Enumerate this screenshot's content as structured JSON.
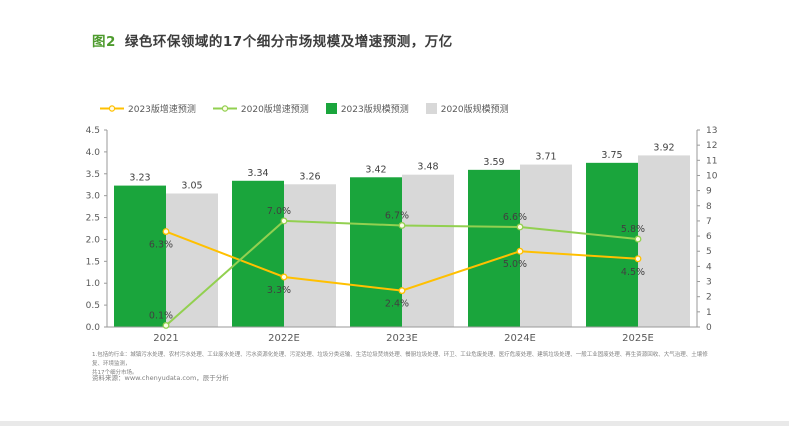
{
  "title": {
    "prefix": "图2",
    "text": "绿色环保领域的17个细分市场规模及增速预测，万亿"
  },
  "footnotes": [
    "1.包括的行业：城镇污水处理、农村污水处理、工业废水处理、污水资源化处理、污泥处理、垃圾分类运输、生活垃圾焚烧处理、餐厨垃圾处理、环卫、工业危废处理、医疗危废处理、建筑垃圾处理、一般工业固废处理、再生资源回收、大气治理、土壤修复、环境监测，",
    "共17个细分市场。"
  ],
  "source": "资料来源：www.chenyudata.com，辰于分析",
  "colors": {
    "bar_2023": "#1aa53c",
    "bar_2020": "#d8d8d8",
    "line_2023": "#ffc000",
    "line_2020": "#92d050",
    "title_accent": "#4e9b2e",
    "axis_text": "#595959",
    "value_text": "#404040",
    "axis_line": "#9a9a9a"
  },
  "chart_data": {
    "type": "bar",
    "title": "绿色环保领域的17个细分市场规模及增速预测，万亿",
    "categories": [
      "2021",
      "2022E",
      "2023E",
      "2024E",
      "2025E"
    ],
    "series": [
      {
        "name": "2023版规模预测",
        "kind": "bar",
        "axis": "left",
        "color": "#1aa53c",
        "values": [
          3.23,
          3.34,
          3.42,
          3.59,
          3.75
        ]
      },
      {
        "name": "2020版规模预测",
        "kind": "bar",
        "axis": "left",
        "color": "#d8d8d8",
        "values": [
          3.05,
          3.26,
          3.48,
          3.71,
          3.92
        ]
      },
      {
        "name": "2023版增速预测",
        "kind": "line",
        "axis": "right",
        "color": "#ffc000",
        "values": [
          6.3,
          3.3,
          2.4,
          5.0,
          4.5
        ],
        "labels": [
          "6.3%",
          "3.3%",
          "2.4%",
          "5.0%",
          "4.5%"
        ],
        "label_position": "below"
      },
      {
        "name": "2020版增速预测",
        "kind": "line",
        "axis": "right",
        "color": "#92d050",
        "values": [
          0.1,
          7.0,
          6.7,
          6.6,
          5.8
        ],
        "labels": [
          "0.1%",
          "7.0%",
          "6.7%",
          "6.6%",
          "5.8%"
        ],
        "label_position": "above"
      }
    ],
    "legend": [
      {
        "label": "2023版增速预测",
        "type": "line",
        "color": "#ffc000"
      },
      {
        "label": "2020版增速预测",
        "type": "line",
        "color": "#92d050"
      },
      {
        "label": "2023版规模预测",
        "type": "square",
        "color": "#1aa53c"
      },
      {
        "label": "2020版规模预测",
        "type": "square",
        "color": "#d8d8d8"
      }
    ],
    "left_axis": {
      "min": 0,
      "max": 4.5,
      "step": 0.5,
      "ticks": [
        "0.0",
        "0.5",
        "1.0",
        "1.5",
        "2.0",
        "2.5",
        "3.0",
        "3.5",
        "4.0",
        "4.5"
      ]
    },
    "right_axis": {
      "min": 0,
      "max": 13,
      "step": 1,
      "ticks": [
        "0",
        "1",
        "2",
        "3",
        "4",
        "5",
        "6",
        "7",
        "8",
        "9",
        "10",
        "11",
        "12",
        "13"
      ]
    },
    "grid": false,
    "legend_position": "top-left"
  }
}
